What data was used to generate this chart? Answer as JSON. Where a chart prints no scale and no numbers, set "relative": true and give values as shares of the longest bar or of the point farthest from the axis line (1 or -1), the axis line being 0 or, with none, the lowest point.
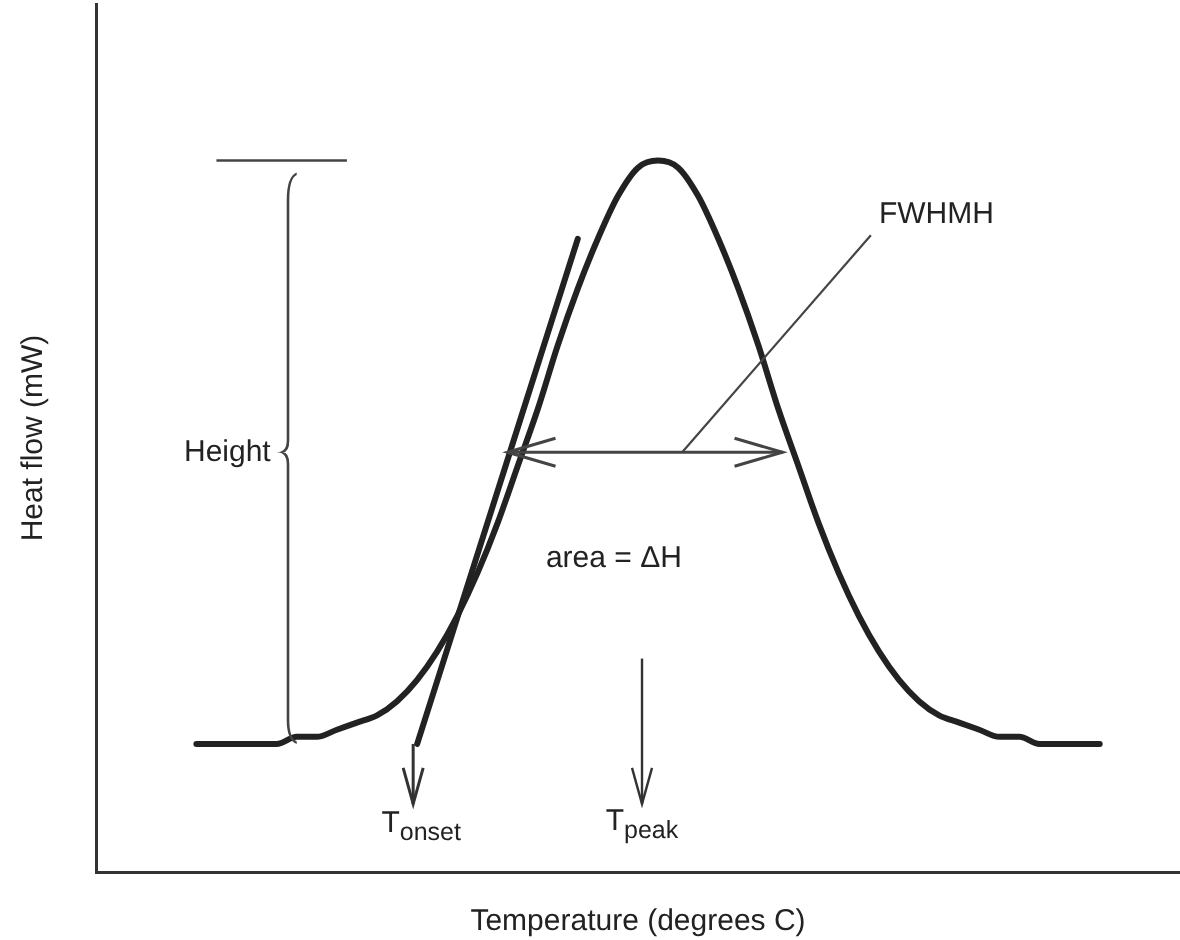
{
  "chart_data": {
    "type": "line",
    "relative": true,
    "xlabel": "Temperature (degrees C)",
    "ylabel": "Heat flow (mW)",
    "categories": [
      null,
      null,
      null,
      null,
      null,
      null,
      null,
      null,
      null,
      null,
      null,
      null,
      null,
      null,
      null,
      null,
      null,
      null,
      null,
      null,
      null,
      null,
      null,
      null,
      null,
      null,
      null,
      null,
      null,
      null,
      null,
      null,
      null,
      null,
      null,
      null,
      null,
      null,
      null,
      null,
      null,
      null,
      null,
      null,
      null,
      null,
      null,
      null,
      null,
      null,
      null,
      null,
      null,
      null,
      null
    ],
    "series": [
      {
        "color": "#222222",
        "values": [
          null,
          null,
          null,
          null,
          null,
          0.18,
          0.18,
          0.18,
          0.18,
          0.18,
          0.19,
          0.19,
          0.2,
          0.21,
          0.22,
          0.24,
          0.27,
          0.31,
          0.36,
          0.42,
          0.49,
          0.57,
          0.65,
          0.74,
          0.82,
          0.89,
          0.95,
          0.99,
          1.0,
          0.99,
          0.95,
          0.89,
          0.82,
          0.74,
          0.65,
          0.57,
          0.49,
          0.42,
          0.36,
          0.31,
          0.27,
          0.24,
          0.22,
          0.21,
          0.2,
          0.19,
          0.19,
          0.18,
          0.18,
          0.18,
          0.18,
          null,
          null,
          null,
          null
        ]
      },
      {
        "color": "#222222",
        "values": [
          null,
          null,
          null,
          null,
          null,
          null,
          null,
          null,
          null,
          null,
          null,
          null,
          null,
          null,
          null,
          null,
          0.18,
          null,
          null,
          null,
          null,
          null,
          null,
          null,
          0.89,
          null,
          null,
          null,
          null,
          null,
          null,
          null,
          null,
          null,
          null,
          null,
          null,
          null,
          null,
          null,
          null,
          null,
          null,
          null,
          null,
          null,
          null,
          null,
          null,
          null,
          null,
          null,
          null,
          null,
          null
        ]
      }
    ],
    "annotations": [
      "Height",
      "FWHMH",
      "area = ΔH",
      "T$_{onset}$",
      "T$_{peak}$"
    ]
  }
}
